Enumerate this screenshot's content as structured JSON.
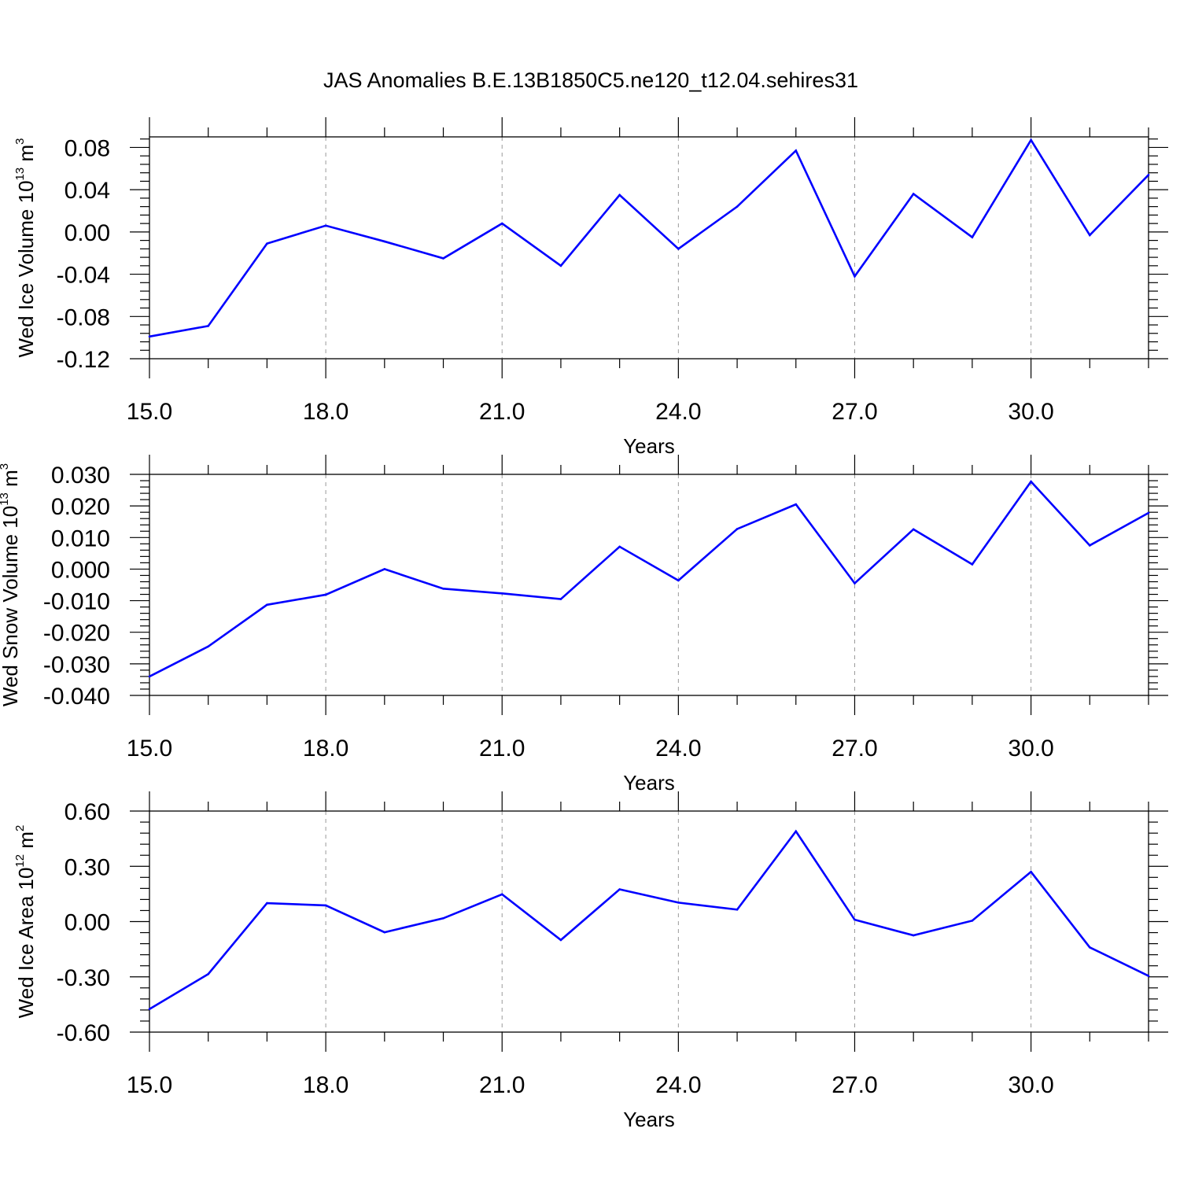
{
  "figure": {
    "title": "JAS Anomalies B.E.13B1850C5.ne120_t12.04.sehires31"
  },
  "style": {
    "line_color": "#0000ff",
    "axis_color": "#000000",
    "grid_color": "#999999"
  },
  "chart_data": [
    {
      "type": "line",
      "xlabel": "Years",
      "ylabel": {
        "main": "Wed Ice Volume 10",
        "exp": "13",
        "unit": " m",
        "unit_exp": "3"
      },
      "xlim": [
        15,
        32
      ],
      "ylim": [
        -0.12,
        0.09
      ],
      "x_ticks": [
        15,
        18,
        21,
        24,
        27,
        30
      ],
      "x_tick_labels": [
        "15.0",
        "18.0",
        "21.0",
        "24.0",
        "27.0",
        "30.0"
      ],
      "y_ticks": [
        -0.12,
        -0.08,
        -0.04,
        0.0,
        0.04,
        0.08
      ],
      "y_tick_labels": [
        "-0.12",
        "-0.08",
        "-0.04",
        "0.00",
        "0.04",
        "0.08"
      ],
      "grid": "vertical dashed at major x ticks",
      "series": [
        {
          "x": [
            15,
            16,
            17,
            18,
            19,
            20,
            21,
            22,
            23,
            24,
            25,
            26,
            27,
            28,
            29,
            30,
            31,
            32
          ],
          "values": [
            -0.099,
            -0.089,
            -0.011,
            0.006,
            -0.009,
            -0.025,
            0.008,
            -0.032,
            0.035,
            -0.016,
            0.024,
            0.077,
            -0.042,
            0.036,
            -0.005,
            0.087,
            -0.003,
            0.054
          ]
        }
      ]
    },
    {
      "type": "line",
      "xlabel": "Years",
      "ylabel": {
        "main": "Wed Snow Volume 10",
        "exp": "13",
        "unit": " m",
        "unit_exp": "3"
      },
      "xlim": [
        15,
        32
      ],
      "ylim": [
        -0.04,
        0.03
      ],
      "x_ticks": [
        15,
        18,
        21,
        24,
        27,
        30
      ],
      "x_tick_labels": [
        "15.0",
        "18.0",
        "21.0",
        "24.0",
        "27.0",
        "30.0"
      ],
      "y_ticks": [
        -0.04,
        -0.03,
        -0.02,
        -0.01,
        0.0,
        0.01,
        0.02,
        0.03
      ],
      "y_tick_labels": [
        "-0.040",
        "-0.030",
        "-0.020",
        "-0.010",
        "0.000",
        "0.010",
        "0.020",
        "0.030"
      ],
      "grid": "vertical dashed at major x ticks",
      "series": [
        {
          "x": [
            15,
            16,
            17,
            18,
            19,
            20,
            21,
            22,
            23,
            24,
            25,
            26,
            27,
            28,
            29,
            30,
            31,
            32
          ],
          "values": [
            -0.034,
            -0.0245,
            -0.0113,
            -0.0081,
            0.0,
            -0.0062,
            -0.0077,
            -0.0095,
            0.0071,
            -0.0036,
            0.0127,
            0.0205,
            -0.0045,
            0.0126,
            0.0015,
            0.0277,
            0.0075,
            0.0178
          ]
        }
      ]
    },
    {
      "type": "line",
      "xlabel": "Years",
      "ylabel": {
        "main": "Wed Ice Area 10",
        "exp": "12",
        "unit": " m",
        "unit_exp": "2"
      },
      "xlim": [
        15,
        32
      ],
      "ylim": [
        -0.6,
        0.6
      ],
      "x_ticks": [
        15,
        18,
        21,
        24,
        27,
        30
      ],
      "x_tick_labels": [
        "15.0",
        "18.0",
        "21.0",
        "24.0",
        "27.0",
        "30.0"
      ],
      "y_ticks": [
        -0.6,
        -0.3,
        0.0,
        0.3,
        0.6
      ],
      "y_tick_labels": [
        "-0.60",
        "-0.30",
        "0.00",
        "0.30",
        "0.60"
      ],
      "grid": "vertical dashed at major x ticks",
      "series": [
        {
          "x": [
            15,
            16,
            17,
            18,
            19,
            20,
            21,
            22,
            23,
            24,
            25,
            26,
            27,
            28,
            29,
            30,
            31,
            32
          ],
          "values": [
            -0.475,
            -0.285,
            0.1,
            0.088,
            -0.058,
            0.018,
            0.148,
            -0.1,
            0.175,
            0.103,
            0.065,
            0.49,
            0.01,
            -0.075,
            0.005,
            0.27,
            -0.14,
            -0.295
          ]
        }
      ]
    }
  ]
}
